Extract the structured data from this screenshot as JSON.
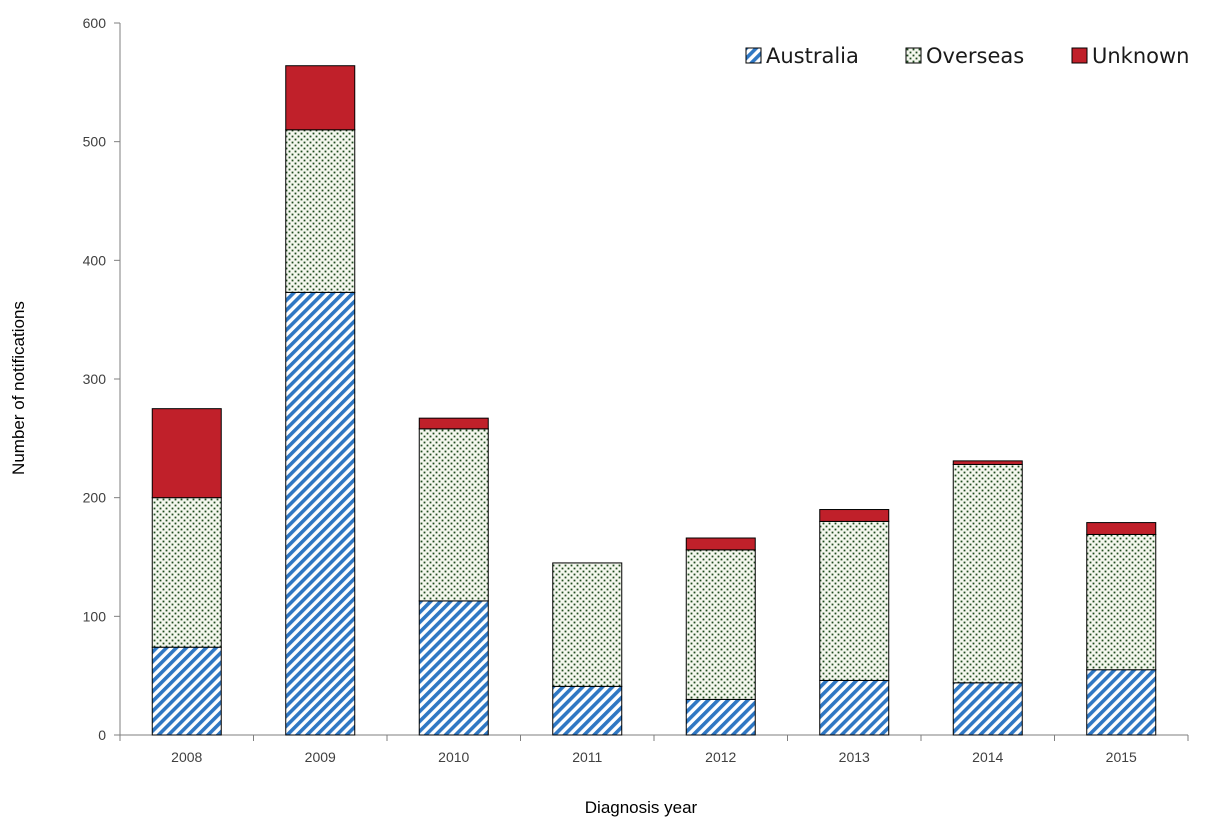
{
  "chart_data": {
    "type": "bar",
    "stacked": true,
    "title": "",
    "xlabel": "Diagnosis year",
    "ylabel": "Number of notifications",
    "ylim": [
      0,
      600
    ],
    "yticks": [
      0,
      100,
      200,
      300,
      400,
      500,
      600
    ],
    "categories": [
      "2008",
      "2009",
      "2010",
      "2011",
      "2012",
      "2013",
      "2014",
      "2015"
    ],
    "series": [
      {
        "name": "Australia",
        "values": [
          74,
          373,
          113,
          41,
          30,
          46,
          44,
          55
        ],
        "color": "#2f77c3",
        "pattern": "diagonal-hatch"
      },
      {
        "name": "Overseas",
        "values": [
          126,
          137,
          145,
          104,
          126,
          134,
          184,
          114
        ],
        "color": "#1e4a1e",
        "pattern": "dots"
      },
      {
        "name": "Unknown",
        "values": [
          75,
          54,
          9,
          0,
          10,
          10,
          3,
          10
        ],
        "color": "#c0202a",
        "pattern": "solid"
      }
    ],
    "legend_position": "top-right",
    "grid": false
  }
}
